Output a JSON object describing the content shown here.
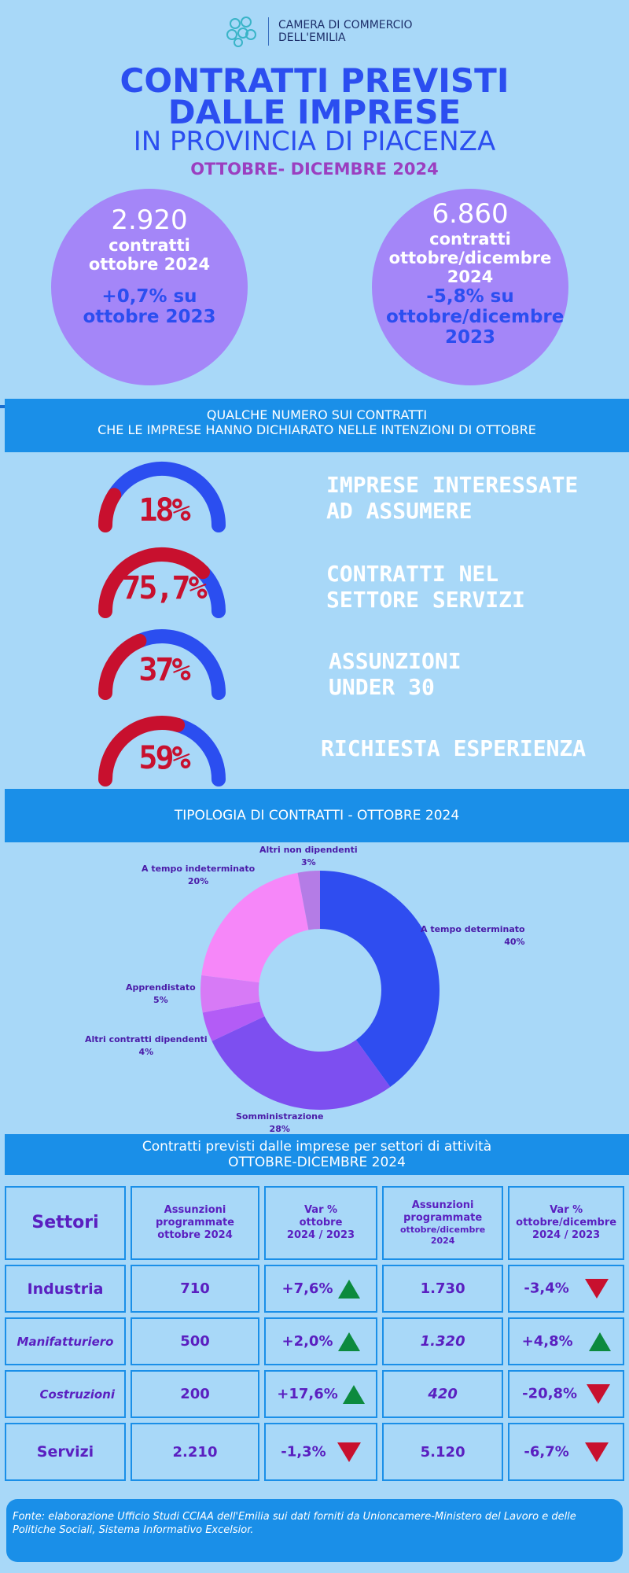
{
  "header": {
    "logo_line1": "CAMERA DI COMMERCIO",
    "logo_line2": "DELL'EMILIA",
    "title_line1": "CONTRATTI PREVISTI",
    "title_line2": "DALLE IMPRESE",
    "title_line3": "IN PROVINCIA DI PIACENZA",
    "period": "OTTOBRE- DICEMBRE  2024"
  },
  "circles": [
    {
      "number": "2.920",
      "label": "contratti ottobre 2024",
      "variation": "+0,7% su ottobre 2023"
    },
    {
      "number": "6.860",
      "label": "contratti ottobre/dicembre 2024",
      "variation": "-5,8% su ottobre/dicembre 2023"
    }
  ],
  "band1": {
    "line1": "QUALCHE NUMERO SUI CONTRATTI",
    "line2": "CHE LE IMPRESE HANNO DICHIARATO NELLE INTENZIONI DI  OTTOBRE"
  },
  "gauges": [
    {
      "pct_text": "18%",
      "value": 18,
      "label_line1": "IMPRESE INTERESSATE",
      "label_line2": "AD ASSUMERE"
    },
    {
      "pct_text": "75,7%",
      "value": 75.7,
      "label_line1": "CONTRATTI NEL",
      "label_line2": "SETTORE SERVIZI"
    },
    {
      "pct_text": "37%",
      "value": 37,
      "label_line1": "ASSUNZIONI",
      "label_line2": "UNDER 30"
    },
    {
      "pct_text": "59%",
      "value": 59,
      "label_line1": "RICHIESTA ESPERIENZA",
      "label_line2": ""
    }
  ],
  "gauge_colors": {
    "filled": "#c8102e",
    "rest": "#2b4ef0"
  },
  "band2": {
    "title": "TIPOLOGIA DI CONTRATTI - OTTOBRE 2024"
  },
  "chart_data": {
    "type": "pie",
    "title": "TIPOLOGIA DI CONTRATTI - OTTOBRE 2024",
    "slices": [
      {
        "name": "A tempo determinato",
        "label": "40%",
        "value": 40,
        "color": "#2f4df0"
      },
      {
        "name": "Somministrazione",
        "label": "28%",
        "value": 28,
        "color": "#7d4ff0"
      },
      {
        "name": "Altri contratti dipendenti",
        "label": "4%",
        "value": 4,
        "color": "#b35cf6"
      },
      {
        "name": "Apprendistato",
        "label": "5%",
        "value": 5,
        "color": "#d77af6"
      },
      {
        "name": "A tempo indeterminato",
        "label": "20%",
        "value": 20,
        "color": "#f687f9"
      },
      {
        "name": "Altri non dipendenti",
        "label": "3%",
        "value": 3,
        "color": "#b47ce6"
      }
    ]
  },
  "band3": {
    "line1": "Contratti previsti dalle imprese per settori di attività",
    "line2": "OTTOBRE-DICEMBRE 2024"
  },
  "table": {
    "headers": {
      "settori": "Settori",
      "ass_ott": "Assunzioni programmate ottobre  2024",
      "var_ott_1": "Var %",
      "var_ott_2": "ottobre",
      "var_ott_3": "2024 / 2023",
      "ass_od_1": "Assunzioni programmate",
      "ass_od_2": "ottobre/dicembre 2024",
      "var_od_1": "Var %",
      "var_od_2": "ottobre/dicembre",
      "var_od_3": "2024 / 2023"
    },
    "rows": [
      {
        "settore": "Industria",
        "ass_ott": "710",
        "var_ott": "+7,6%",
        "var_ott_dir": "up",
        "ass_od": "1.730",
        "var_od": "-3,4%",
        "var_od_dir": "down"
      },
      {
        "settore": "Manifatturiero",
        "ass_ott": "500",
        "var_ott": "+2,0%",
        "var_ott_dir": "up",
        "ass_od": "1.320",
        "var_od": "+4,8%",
        "var_od_dir": "up"
      },
      {
        "settore": "Costruzioni",
        "ass_ott": "200",
        "var_ott": "+17,6%",
        "var_ott_dir": "up",
        "ass_od": "420",
        "var_od": "-20,8%",
        "var_od_dir": "down"
      },
      {
        "settore": "Servizi",
        "ass_ott": "2.210",
        "var_ott": "-1,3%",
        "var_ott_dir": "down",
        "ass_od": "5.120",
        "var_od": "-6,7%",
        "var_od_dir": "down"
      }
    ]
  },
  "footer": {
    "source": "Fonte: elaborazione Ufficio Studi CCIAA dell'Emilia sui dati forniti da Unioncamere-Ministero del Lavoro e delle Politiche Sociali, Sistema Informativo Excelsior."
  }
}
